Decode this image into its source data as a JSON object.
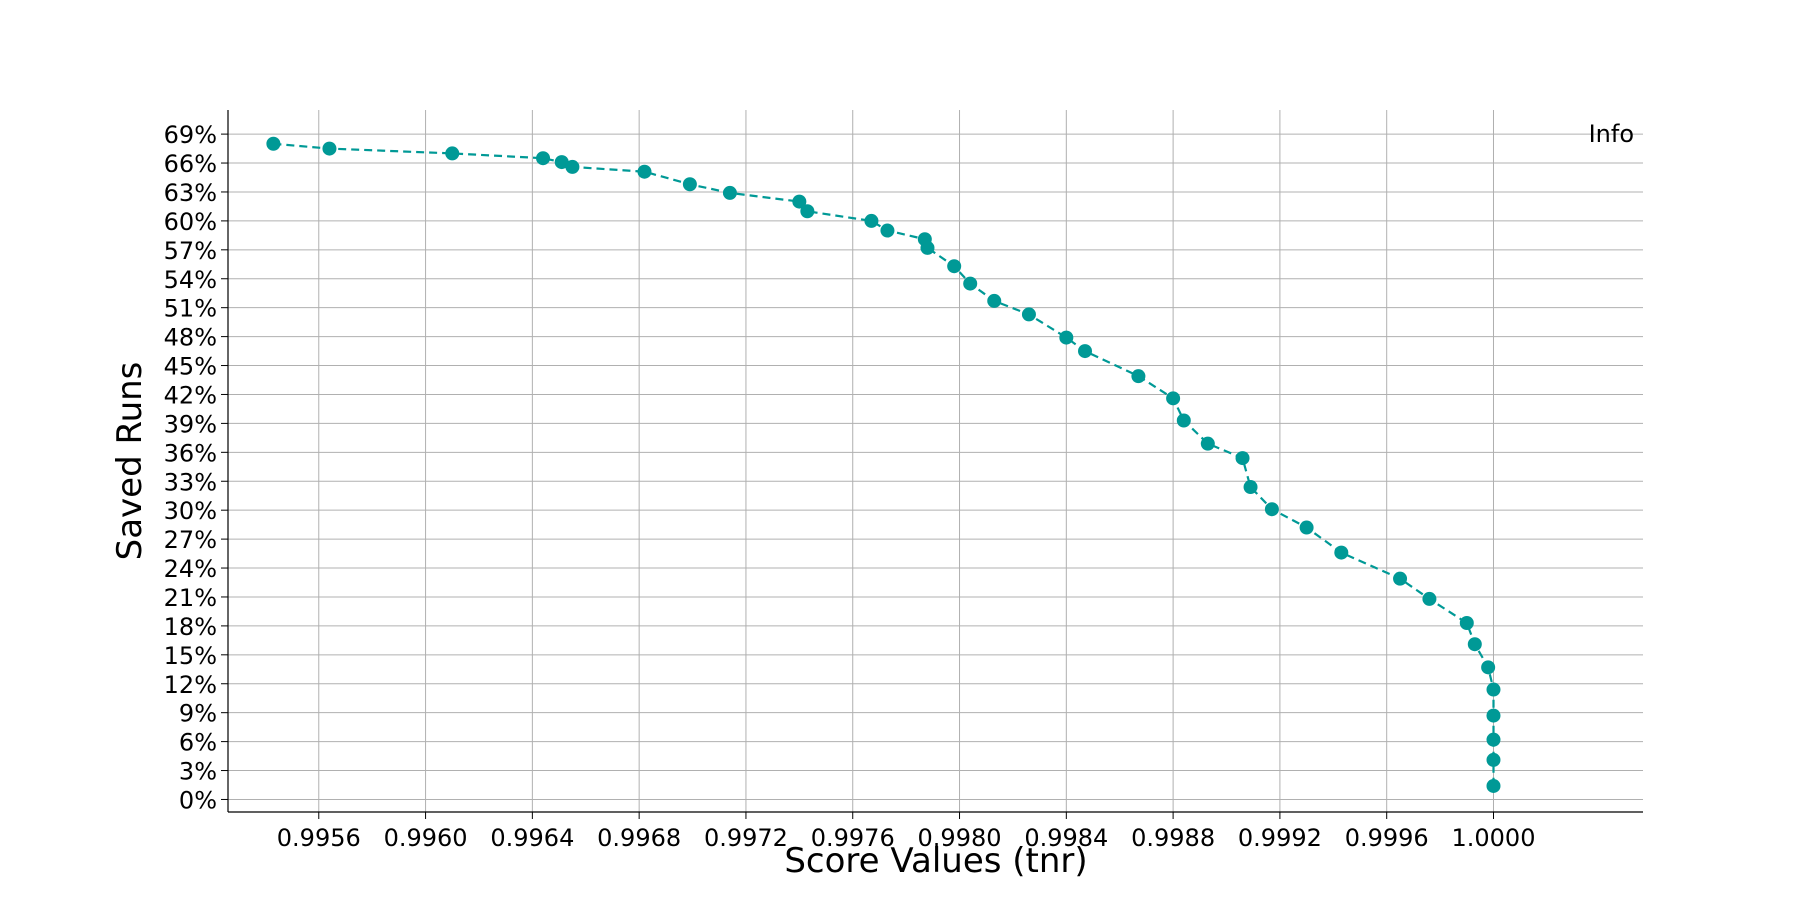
{
  "chart_data": {
    "type": "line",
    "title": "",
    "xlabel": "Score Values (tnr)",
    "ylabel": "Saved Runs",
    "annotation": "Info",
    "xlim": [
      0.99526,
      1.00056
    ],
    "ylim": [
      -1.3,
      71.5
    ],
    "x_ticks": [
      0.9956,
      0.996,
      0.9964,
      0.9968,
      0.9972,
      0.9976,
      0.998,
      0.9984,
      0.9988,
      0.9992,
      0.9996,
      1.0
    ],
    "x_tick_labels": [
      "0.9956",
      "0.9960",
      "0.9964",
      "0.9968",
      "0.9972",
      "0.9976",
      "0.9980",
      "0.9984",
      "0.9988",
      "0.9992",
      "0.9996",
      "1.0000"
    ],
    "y_ticks": [
      0,
      3,
      6,
      9,
      12,
      15,
      18,
      21,
      24,
      27,
      30,
      33,
      36,
      39,
      42,
      45,
      48,
      51,
      54,
      57,
      60,
      63,
      66,
      69
    ],
    "y_tick_labels": [
      "0%",
      "3%",
      "6%",
      "9%",
      "12%",
      "15%",
      "18%",
      "21%",
      "24%",
      "27%",
      "30%",
      "33%",
      "36%",
      "39%",
      "42%",
      "45%",
      "48%",
      "51%",
      "54%",
      "57%",
      "60%",
      "63%",
      "66%",
      "69%"
    ],
    "grid": true,
    "line_style": "dashed",
    "marker": "circle",
    "color": "#009996",
    "series": [
      {
        "x": [
          0.99543,
          0.99564,
          0.9961,
          0.99644,
          0.99651,
          0.99655,
          0.99682,
          0.99699,
          0.99714,
          0.9974,
          0.99743,
          0.99767,
          0.99773,
          0.99787,
          0.99788,
          0.99798,
          0.99804,
          0.99813,
          0.99826,
          0.9984,
          0.99847,
          0.99867,
          0.9988,
          0.99884,
          0.99893,
          0.99906,
          0.99909,
          0.99917,
          0.9993,
          0.99943,
          0.99965,
          0.99976,
          0.9999,
          0.99993,
          0.99998,
          1.0,
          1.0,
          1.0,
          1.0,
          1.0
        ],
        "y": [
          68.0,
          67.5,
          67.0,
          66.5,
          66.1,
          65.6,
          65.1,
          63.8,
          62.9,
          62.0,
          61.0,
          60.0,
          59.0,
          58.1,
          57.2,
          55.3,
          53.5,
          51.7,
          50.3,
          47.9,
          46.5,
          43.9,
          41.6,
          39.3,
          36.9,
          35.4,
          32.4,
          30.1,
          28.2,
          25.6,
          22.9,
          20.8,
          18.3,
          16.1,
          13.7,
          11.4,
          8.7,
          6.2,
          4.1,
          1.4
        ]
      }
    ]
  }
}
